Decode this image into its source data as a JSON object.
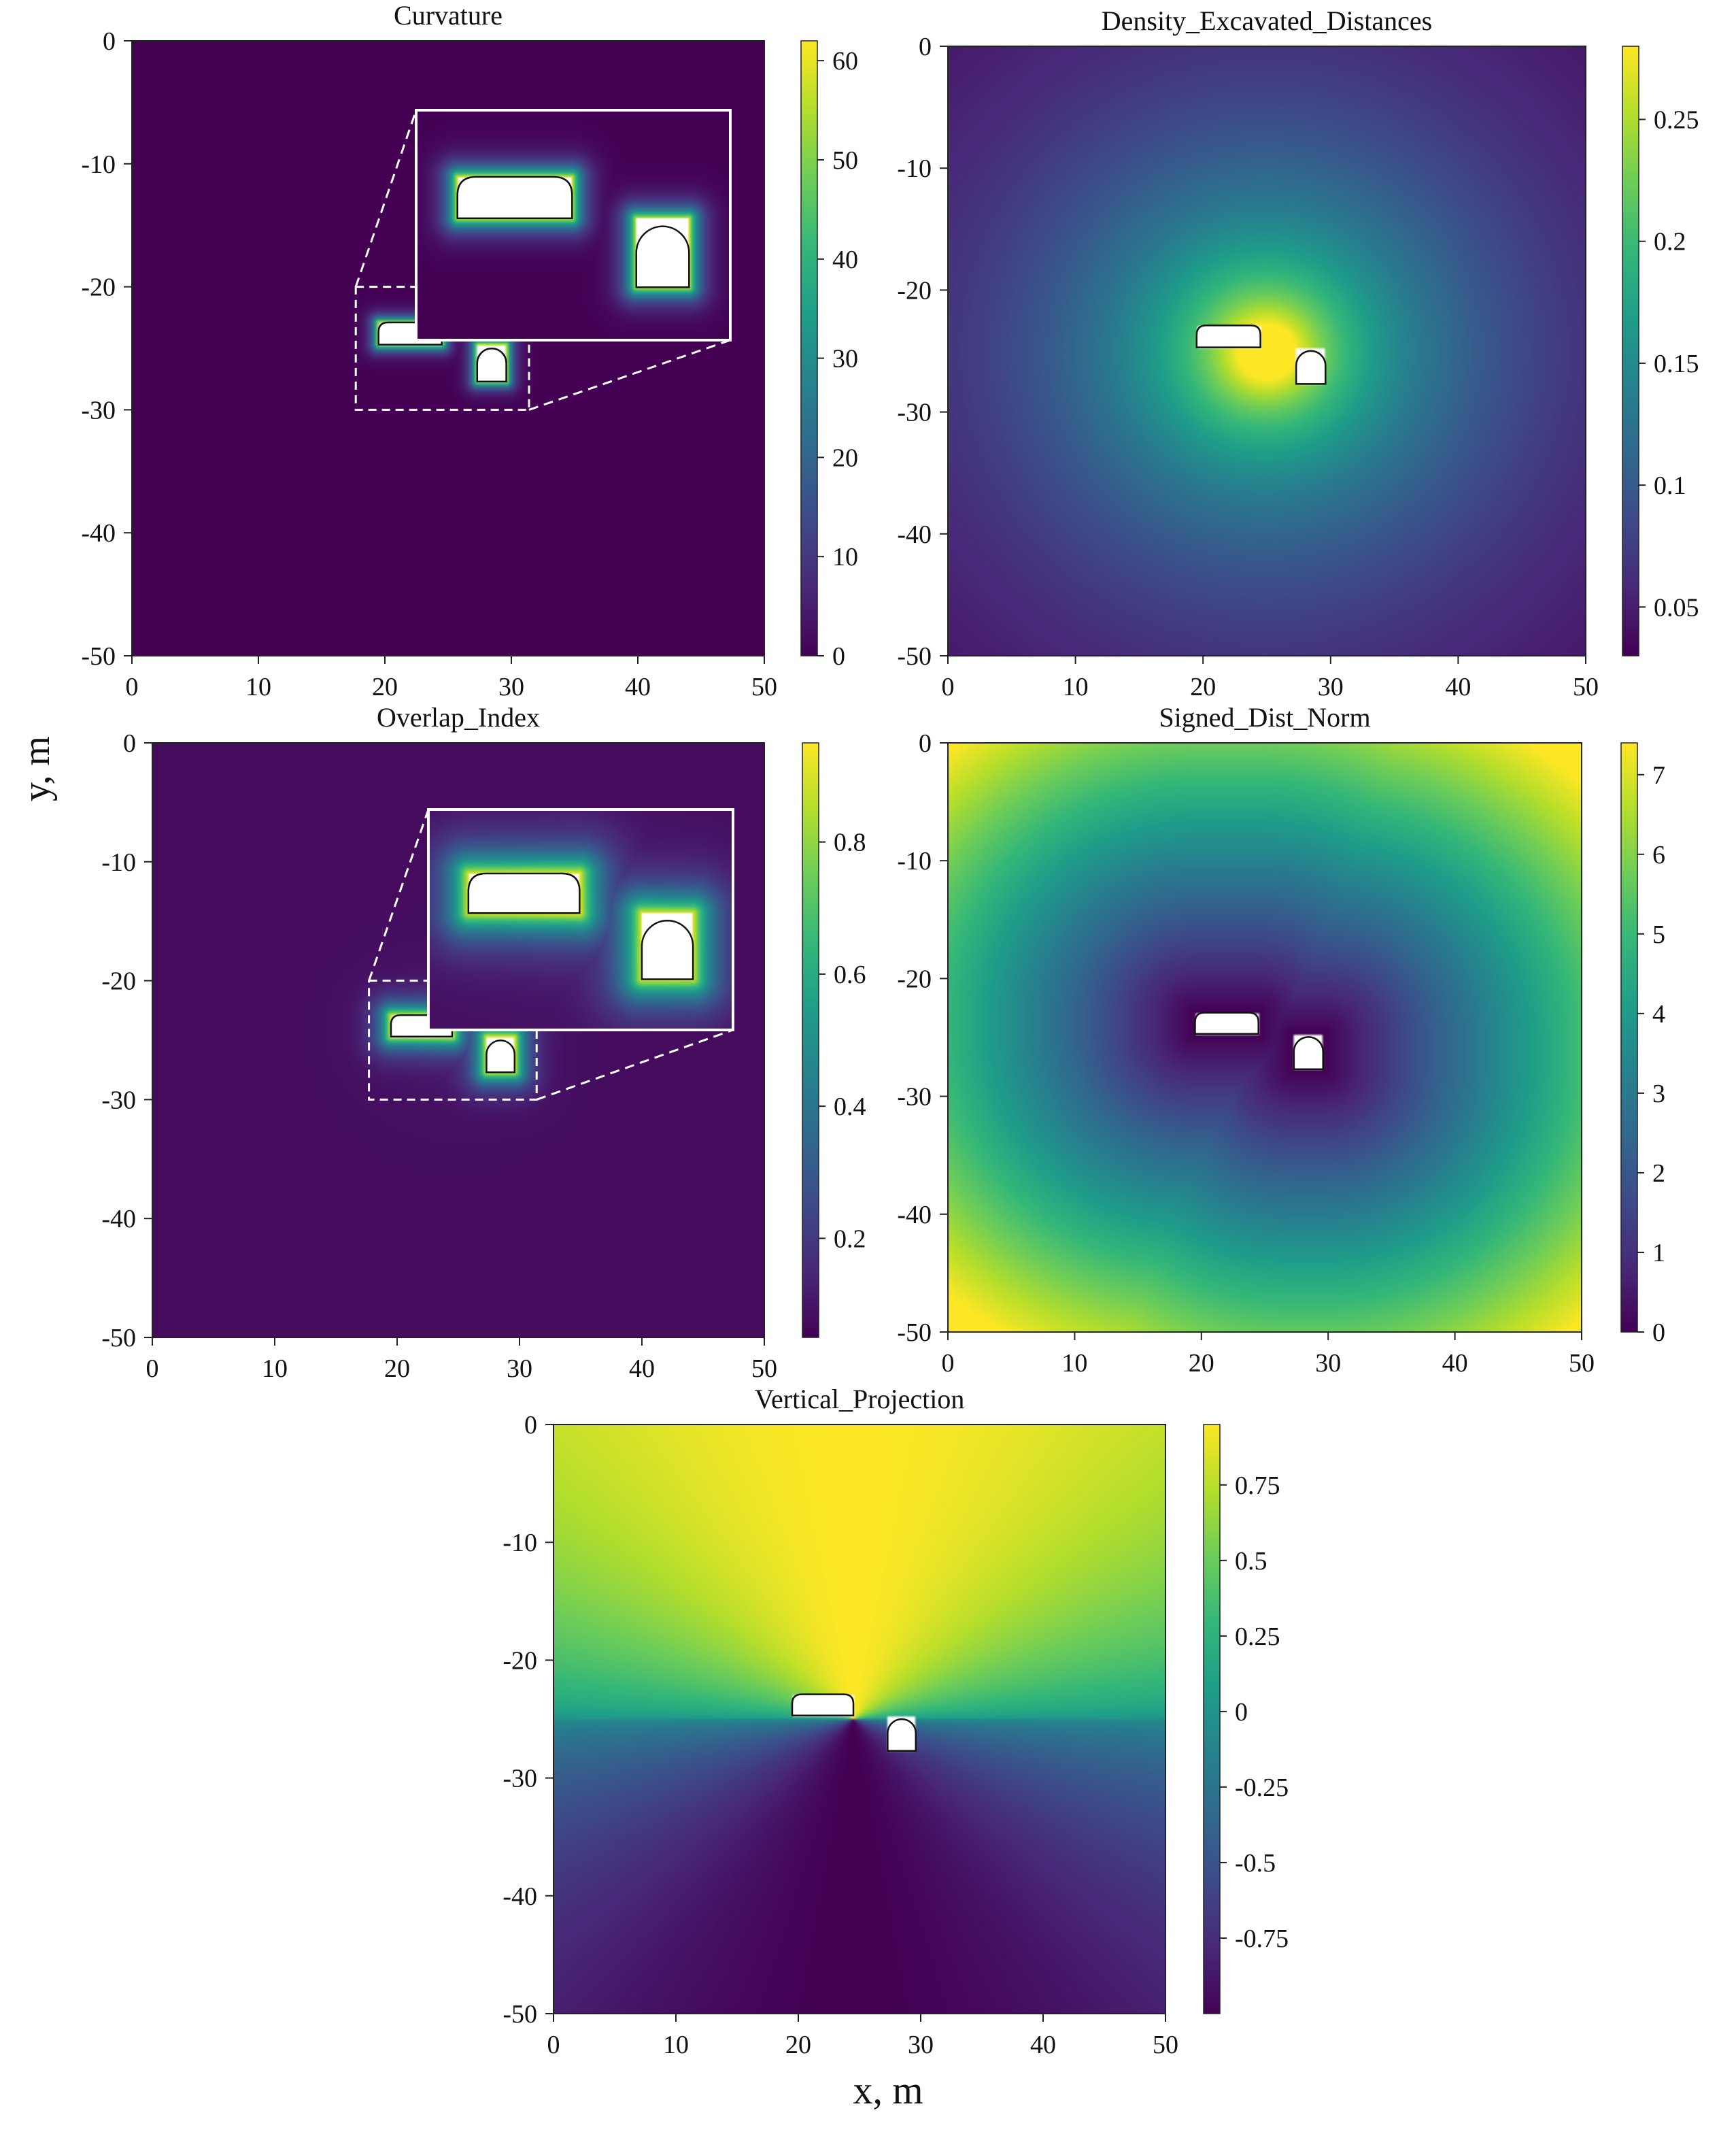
{
  "figure": {
    "ylabel": "y, m",
    "xlabel": "x, m"
  },
  "chart_data": [
    {
      "type": "heatmap",
      "title": "Curvature",
      "colormap": "viridis",
      "xlim": [
        0,
        50
      ],
      "ylim": [
        -50,
        0
      ],
      "xticks": [
        0,
        10,
        20,
        30,
        40,
        50
      ],
      "yticks": [
        0,
        -10,
        -20,
        -30,
        -40,
        -50
      ],
      "colorbar": {
        "range": [
          0,
          62
        ],
        "ticks": [
          0,
          10,
          20,
          30,
          40,
          50,
          60
        ],
        "tick_labels": [
          "0",
          "10",
          "20",
          "30",
          "40",
          "50",
          "60"
        ]
      },
      "field": "curvature",
      "inset": {
        "zoom_region_x": [
          17.7,
          31.4
        ],
        "zoom_region_y": [
          -30,
          -20
        ]
      },
      "openings": [
        {
          "shape": "horseshoe-flat",
          "x": [
            19.5,
            24.5
          ],
          "y": [
            -24.7,
            -22.9
          ]
        },
        {
          "shape": "horseshoe",
          "x": [
            27.3,
            29.6
          ],
          "y": [
            -27.7,
            -24.7
          ]
        }
      ]
    },
    {
      "type": "heatmap",
      "title": "Density_Excavated_Distances",
      "colormap": "viridis",
      "xlim": [
        0,
        50
      ],
      "ylim": [
        -50,
        0
      ],
      "xticks": [
        0,
        10,
        20,
        30,
        40,
        50
      ],
      "yticks": [
        0,
        -10,
        -20,
        -30,
        -40,
        -50
      ],
      "colorbar": {
        "range": [
          0.03,
          0.28
        ],
        "ticks": [
          0.05,
          0.1,
          0.15,
          0.2,
          0.25
        ],
        "tick_labels": [
          "0.05",
          "0.1",
          "0.15",
          "0.2",
          "0.25"
        ]
      },
      "field": "density",
      "openings": [
        {
          "shape": "horseshoe-flat",
          "x": [
            19.5,
            24.5
          ],
          "y": [
            -24.7,
            -22.9
          ]
        },
        {
          "shape": "horseshoe",
          "x": [
            27.3,
            29.6
          ],
          "y": [
            -27.7,
            -24.7
          ]
        }
      ]
    },
    {
      "type": "heatmap",
      "title": "Overlap_Index",
      "colormap": "viridis",
      "xlim": [
        0,
        50
      ],
      "ylim": [
        -50,
        0
      ],
      "xticks": [
        0,
        10,
        20,
        30,
        40,
        50
      ],
      "yticks": [
        0,
        -10,
        -20,
        -30,
        -40,
        -50
      ],
      "colorbar": {
        "range": [
          0.05,
          0.95
        ],
        "ticks": [
          0.2,
          0.4,
          0.6,
          0.8
        ],
        "tick_labels": [
          "0.2",
          "0.4",
          "0.6",
          "0.8"
        ]
      },
      "field": "overlap",
      "inset": {
        "zoom_region_x": [
          17.7,
          31.4
        ],
        "zoom_region_y": [
          -30,
          -20
        ]
      },
      "openings": [
        {
          "shape": "horseshoe-flat",
          "x": [
            19.5,
            24.5
          ],
          "y": [
            -24.7,
            -22.9
          ]
        },
        {
          "shape": "horseshoe",
          "x": [
            27.3,
            29.6
          ],
          "y": [
            -27.7,
            -24.7
          ]
        }
      ]
    },
    {
      "type": "heatmap",
      "title": "Signed_Dist_Norm",
      "colormap": "viridis",
      "xlim": [
        0,
        50
      ],
      "ylim": [
        -50,
        0
      ],
      "xticks": [
        0,
        10,
        20,
        30,
        40,
        50
      ],
      "yticks": [
        0,
        -10,
        -20,
        -30,
        -40,
        -50
      ],
      "colorbar": {
        "range": [
          0,
          7.4
        ],
        "ticks": [
          0,
          1,
          2,
          3,
          4,
          5,
          6,
          7
        ],
        "tick_labels": [
          "0",
          "1",
          "2",
          "3",
          "4",
          "5",
          "6",
          "7"
        ]
      },
      "field": "signed_dist",
      "openings": [
        {
          "shape": "horseshoe-flat",
          "x": [
            19.5,
            24.5
          ],
          "y": [
            -24.7,
            -22.9
          ]
        },
        {
          "shape": "horseshoe",
          "x": [
            27.3,
            29.6
          ],
          "y": [
            -27.7,
            -24.7
          ]
        }
      ]
    },
    {
      "type": "heatmap",
      "title": "Vertical_Projection",
      "colormap": "viridis",
      "xlim": [
        0,
        50
      ],
      "ylim": [
        -50,
        0
      ],
      "xticks": [
        0,
        10,
        20,
        30,
        40,
        50
      ],
      "yticks": [
        0,
        -10,
        -20,
        -30,
        -40,
        -50
      ],
      "colorbar": {
        "range": [
          -1,
          0.95
        ],
        "ticks": [
          -0.75,
          -0.5,
          -0.25,
          0,
          0.25,
          0.5,
          0.75
        ],
        "tick_labels": [
          "-0.75",
          "-0.5",
          "-0.25",
          "0",
          "0.25",
          "0.5",
          "0.75"
        ]
      },
      "field": "vertical",
      "openings": [
        {
          "shape": "horseshoe-flat",
          "x": [
            19.5,
            24.5
          ],
          "y": [
            -24.7,
            -22.9
          ]
        },
        {
          "shape": "horseshoe",
          "x": [
            27.3,
            29.6
          ],
          "y": [
            -27.7,
            -24.7
          ]
        }
      ]
    }
  ]
}
